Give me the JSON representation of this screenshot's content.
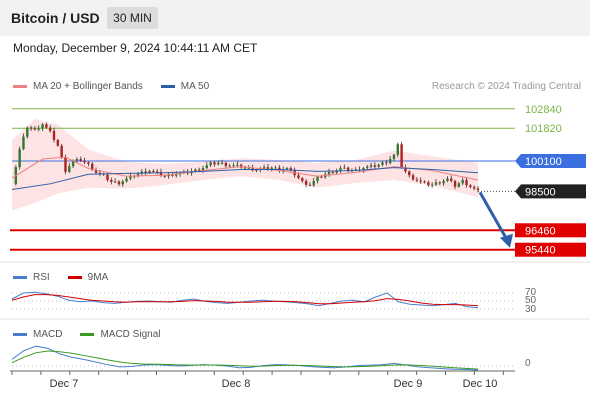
{
  "header": {
    "title": "Bitcoin / USD",
    "interval": "30 MIN"
  },
  "timestamp": "Monday, December 9, 2024 10:44:11 AM CET",
  "legends": {
    "main": [
      {
        "label": "MA 20 + Bollinger Bands",
        "color": "#f08080",
        "icon": "bollinger-swatch"
      },
      {
        "label": "MA 50",
        "color": "#2e5fa8",
        "icon": "ma50-swatch"
      }
    ],
    "rsi": [
      {
        "label": "RSI",
        "color": "#4a7fd0",
        "icon": "rsi-swatch"
      },
      {
        "label": "9MA",
        "color": "#d00000",
        "icon": "rsi-9ma-swatch"
      }
    ],
    "macd": [
      {
        "label": "MACD",
        "color": "#4a7fd0",
        "icon": "macd-swatch"
      },
      {
        "label": "MACD Signal",
        "color": "#3a9a20",
        "icon": "macd-signal-swatch"
      }
    ]
  },
  "copyright": "Research © 2024 Trading Central",
  "chart_data": {
    "type": "candlestick",
    "title": "Bitcoin / USD",
    "interval": "30 MIN",
    "x_ticks": [
      "Dec 7",
      "Dec 8",
      "Dec 9",
      "Dec 10"
    ],
    "y_range": [
      94900,
      103300
    ],
    "levels": [
      {
        "value": 102840,
        "label": "102840",
        "kind": "resistance",
        "color": "#7ab648"
      },
      {
        "value": 101820,
        "label": "101820",
        "kind": "resistance",
        "color": "#7ab648"
      },
      {
        "value": 100100,
        "label": "100100",
        "kind": "pivot",
        "color": "#3b6fe0"
      },
      {
        "value": 98500,
        "label": "98500",
        "kind": "last-price",
        "color": "#222222"
      },
      {
        "value": 96460,
        "label": "96460",
        "kind": "support",
        "color": "#e00000"
      },
      {
        "value": 95440,
        "label": "95440",
        "kind": "support",
        "color": "#e00000"
      }
    ],
    "price_path": [
      [
        0,
        98900
      ],
      [
        2,
        100700
      ],
      [
        4,
        101900
      ],
      [
        6,
        101700
      ],
      [
        8,
        102050
      ],
      [
        10,
        101600
      ],
      [
        12,
        100900
      ],
      [
        14,
        99600
      ],
      [
        16,
        100100
      ],
      [
        18,
        100150
      ],
      [
        20,
        99900
      ],
      [
        22,
        99500
      ],
      [
        24,
        99300
      ],
      [
        26,
        99000
      ],
      [
        28,
        98950
      ],
      [
        30,
        99150
      ],
      [
        32,
        99350
      ],
      [
        34,
        99500
      ],
      [
        36,
        99600
      ],
      [
        38,
        99450
      ],
      [
        40,
        99300
      ],
      [
        42,
        99400
      ],
      [
        44,
        99450
      ],
      [
        46,
        99500
      ],
      [
        48,
        99600
      ],
      [
        50,
        99750
      ],
      [
        52,
        99950
      ],
      [
        54,
        100000
      ],
      [
        56,
        99900
      ],
      [
        58,
        99850
      ],
      [
        60,
        99800
      ],
      [
        62,
        99700
      ],
      [
        64,
        99650
      ],
      [
        66,
        99700
      ],
      [
        68,
        99750
      ],
      [
        70,
        99650
      ],
      [
        72,
        99700
      ],
      [
        74,
        99400
      ],
      [
        76,
        99000
      ],
      [
        78,
        98850
      ],
      [
        80,
        99200
      ],
      [
        82,
        99400
      ],
      [
        84,
        99550
      ],
      [
        86,
        99700
      ],
      [
        88,
        99650
      ],
      [
        90,
        99600
      ],
      [
        92,
        99750
      ],
      [
        94,
        99800
      ],
      [
        96,
        99900
      ],
      [
        98,
        100050
      ],
      [
        100,
        100400
      ],
      [
        101,
        100900
      ],
      [
        102,
        99800
      ],
      [
        104,
        99300
      ],
      [
        106,
        99100
      ],
      [
        108,
        98900
      ],
      [
        110,
        98850
      ],
      [
        112,
        99000
      ],
      [
        114,
        99150
      ],
      [
        116,
        98800
      ],
      [
        118,
        99050
      ],
      [
        120,
        98750
      ],
      [
        122,
        98500
      ]
    ],
    "ma50": [
      [
        0,
        98600
      ],
      [
        10,
        98900
      ],
      [
        20,
        99400
      ],
      [
        30,
        99450
      ],
      [
        40,
        99480
      ],
      [
        50,
        99550
      ],
      [
        60,
        99650
      ],
      [
        70,
        99650
      ],
      [
        80,
        99550
      ],
      [
        90,
        99600
      ],
      [
        100,
        99750
      ],
      [
        110,
        99650
      ],
      [
        122,
        99480
      ]
    ],
    "ma20": [
      [
        0,
        99200
      ],
      [
        8,
        100200
      ],
      [
        14,
        100300
      ],
      [
        20,
        99700
      ],
      [
        30,
        99300
      ],
      [
        40,
        99350
      ],
      [
        50,
        99600
      ],
      [
        60,
        99800
      ],
      [
        70,
        99600
      ],
      [
        80,
        99300
      ],
      [
        90,
        99500
      ],
      [
        100,
        99800
      ],
      [
        110,
        99600
      ],
      [
        122,
        99100
      ]
    ],
    "bollinger_upper": [
      [
        0,
        101200
      ],
      [
        6,
        102300
      ],
      [
        12,
        102000
      ],
      [
        20,
        100700
      ],
      [
        30,
        100050
      ],
      [
        40,
        99950
      ],
      [
        50,
        100050
      ],
      [
        60,
        100250
      ],
      [
        70,
        100150
      ],
      [
        80,
        100000
      ],
      [
        90,
        100150
      ],
      [
        100,
        100650
      ],
      [
        110,
        100350
      ],
      [
        122,
        100000
      ]
    ],
    "bollinger_lower": [
      [
        0,
        97500
      ],
      [
        6,
        97900
      ],
      [
        12,
        98400
      ],
      [
        20,
        98700
      ],
      [
        30,
        98650
      ],
      [
        40,
        98850
      ],
      [
        50,
        99100
      ],
      [
        60,
        99300
      ],
      [
        70,
        99100
      ],
      [
        80,
        98700
      ],
      [
        90,
        98950
      ],
      [
        100,
        99100
      ],
      [
        110,
        98800
      ],
      [
        122,
        98200
      ]
    ],
    "projection": {
      "from": 98500,
      "to": 95440
    },
    "rsi": {
      "levels": [
        70,
        50,
        30
      ],
      "values": [
        55,
        70,
        72,
        68,
        62,
        52,
        48,
        50,
        46,
        44,
        47,
        49,
        50,
        48,
        47,
        52,
        55,
        49,
        46,
        44,
        47,
        50,
        52,
        50,
        48,
        46,
        43,
        38,
        44,
        50,
        52,
        48,
        60,
        70,
        48,
        42,
        40,
        38,
        41,
        44,
        36,
        33
      ],
      "ma9": [
        52,
        60,
        66,
        66,
        64,
        60,
        56,
        52,
        50,
        48,
        47,
        48,
        48,
        48,
        48,
        49,
        51,
        50,
        49,
        47,
        47,
        47,
        48,
        49,
        49,
        48,
        46,
        43,
        43,
        45,
        47,
        48,
        51,
        56,
        54,
        50,
        45,
        42,
        41,
        41,
        40,
        38
      ]
    },
    "macd": {
      "zero_label": "0",
      "values": [
        300,
        700,
        900,
        800,
        550,
        400,
        300,
        180,
        60,
        -40,
        -20,
        40,
        60,
        30,
        0,
        20,
        60,
        40,
        0,
        -80,
        -60,
        20,
        60,
        50,
        20,
        -30,
        -60,
        -80,
        -40,
        20,
        40,
        60,
        120,
        40,
        -40,
        -80,
        -120,
        -150,
        -160,
        -180
      ],
      "signal": [
        150,
        400,
        600,
        680,
        650,
        580,
        480,
        380,
        280,
        180,
        120,
        90,
        80,
        70,
        50,
        40,
        45,
        45,
        35,
        10,
        -10,
        -5,
        15,
        30,
        30,
        15,
        -5,
        -30,
        -40,
        -30,
        -10,
        15,
        45,
        50,
        30,
        0,
        -40,
        -80,
        -110,
        -140
      ]
    }
  }
}
